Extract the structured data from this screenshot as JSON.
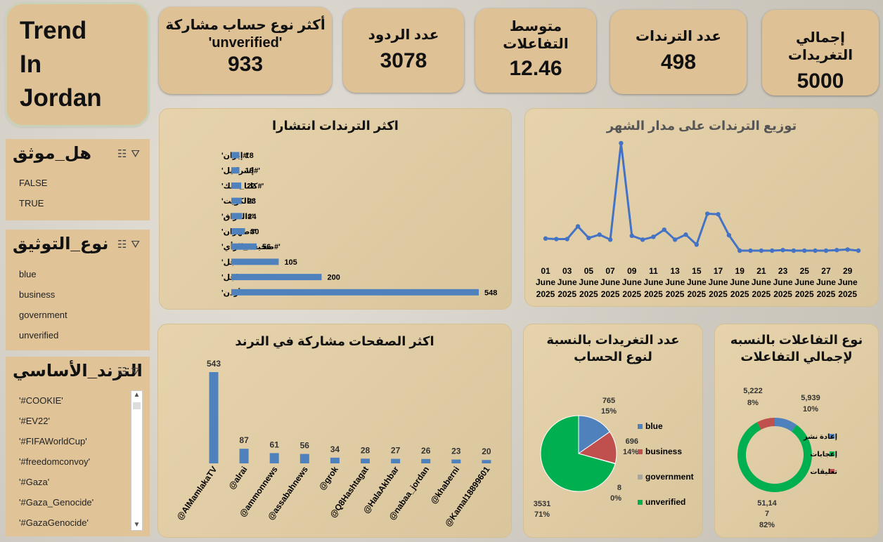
{
  "title": {
    "line1": "Trend",
    "line2": "In",
    "line3": "Jordan"
  },
  "kpis": {
    "top_account": {
      "label_line1": "أكثر نوع حساب مشاركة",
      "label_line2": "'unverified'",
      "value": "933"
    },
    "replies": {
      "label": "عدد الردود",
      "value": "3078"
    },
    "avg_interactions": {
      "label_line1": "متوسط",
      "label_line2": "التفاعلات",
      "value": "12.46"
    },
    "trends": {
      "label": "عدد الترندات",
      "value": "498"
    },
    "total_tweets": {
      "label": "إجمالي التغريدات",
      "value": "5000"
    }
  },
  "slicers": {
    "verified": {
      "title": "هل_موثق",
      "items": [
        "FALSE",
        "TRUE"
      ]
    },
    "verification_type": {
      "title": "نوع_التوثيق",
      "items": [
        "blue",
        "business",
        "government",
        "unverified"
      ]
    },
    "main_trend": {
      "title": "الترند_الأساسي",
      "items": [
        "'#COOKIE'",
        "'#EV22'",
        "'#FIFAWorldCup'",
        "'#freedomconvoy'",
        "'#Gaza'",
        "'#Gaza_Genocide'",
        "'#GazaGenocide'"
      ]
    }
  },
  "icons": {
    "filter": "filter-icon",
    "multi_select": "multi-select-icon",
    "scroll_up": "scroll-up-icon",
    "scroll_down": "scroll-down-icon"
  },
  "colors": {
    "card": "#dfc196",
    "bar": "#4f81bd",
    "line": "#4472c4",
    "green": "#00b050",
    "red": "#c0504d",
    "gray": "#a5a5a5"
  },
  "chart_data": [
    {
      "id": "top-trends",
      "type": "bar",
      "orientation": "horizontal",
      "title": "اكثر الترندات انتشارا",
      "categories": [
        "'#إيران'",
        "'#إسرائيل'",
        "'#كلنا_معك'",
        "'#الكويت'",
        "'#العراق'",
        "'#طهران'",
        "'#صحيفة_الرأي'",
        "'#عاجل'",
        "'#عاجل'",
        "'#الأردن'"
      ],
      "values": [
        18,
        18,
        22,
        23,
        24,
        30,
        56,
        105,
        200,
        548
      ]
    },
    {
      "id": "monthly-trend",
      "type": "line",
      "title": "توزيع الترندات على مدار الشهر",
      "x_ticks": [
        {
          "d": "01",
          "m": "June",
          "y": "2025"
        },
        {
          "d": "03",
          "m": "June",
          "y": "2025"
        },
        {
          "d": "05",
          "m": "June",
          "y": "2025"
        },
        {
          "d": "07",
          "m": "June",
          "y": "2025"
        },
        {
          "d": "09",
          "m": "June",
          "y": "2025"
        },
        {
          "d": "11",
          "m": "June",
          "y": "2025"
        },
        {
          "d": "13",
          "m": "June",
          "y": "2025"
        },
        {
          "d": "15",
          "m": "June",
          "y": "2025"
        },
        {
          "d": "17",
          "m": "June",
          "y": "2025"
        },
        {
          "d": "19",
          "m": "June",
          "y": "2025"
        },
        {
          "d": "21",
          "m": "June",
          "y": "2025"
        },
        {
          "d": "23",
          "m": "June",
          "y": "2025"
        },
        {
          "d": "25",
          "m": "June",
          "y": "2025"
        },
        {
          "d": "27",
          "m": "June",
          "y": "2025"
        },
        {
          "d": "29",
          "m": "June",
          "y": "2025"
        }
      ],
      "x": [
        1,
        2,
        3,
        4,
        5,
        6,
        7,
        8,
        9,
        10,
        11,
        12,
        13,
        14,
        15,
        16,
        17,
        18,
        19,
        20,
        21,
        22,
        23,
        24,
        25,
        26,
        27,
        28,
        29,
        30
      ],
      "values": [
        22,
        21,
        21,
        44,
        23,
        29,
        20,
        195,
        27,
        20,
        25,
        38,
        20,
        29,
        11,
        67,
        66,
        28,
        0,
        0,
        0,
        0,
        1,
        0,
        0,
        0,
        0,
        1,
        2,
        0
      ],
      "ylim": [
        0,
        200
      ]
    },
    {
      "id": "top-pages",
      "type": "bar",
      "title": "اكثر الصفحات مشاركة في الترند",
      "categories": [
        "@AlMamlakaTV",
        "@alrai",
        "@ammonnews",
        "@assabahnews",
        "@grok",
        "@Q8Hashtagat",
        "@HalaAkhbar",
        "@nabaa_jordan",
        "@khaberni",
        "@Kamal18899601"
      ],
      "values": [
        543,
        87,
        61,
        56,
        34,
        28,
        27,
        26,
        23,
        20
      ]
    },
    {
      "id": "tweets-by-account",
      "type": "pie",
      "title_line1": "عدد التغريدات بالنسبة",
      "title_line2": "لنوع الحساب",
      "slices": [
        {
          "name": "blue",
          "value": 765,
          "pct": "15%"
        },
        {
          "name": "business",
          "value": 696,
          "pct": "14%"
        },
        {
          "name": "government",
          "value": 8,
          "pct": "0%"
        },
        {
          "name": "unverified",
          "value": 3531,
          "pct": "71%"
        }
      ]
    },
    {
      "id": "interaction-type",
      "type": "donut",
      "title_line1": "نوع التفاعلات بالنسبه",
      "title_line2": "لإجمالي التفاعلات",
      "slices": [
        {
          "name": "إعادة نشر",
          "label": "5,939",
          "pct": "10%"
        },
        {
          "name": "إعجابات",
          "label": "51,14",
          "label2": "7",
          "pct": "82%"
        },
        {
          "name": "تعليقات",
          "label": "5,222",
          "pct": "8%"
        }
      ]
    }
  ]
}
